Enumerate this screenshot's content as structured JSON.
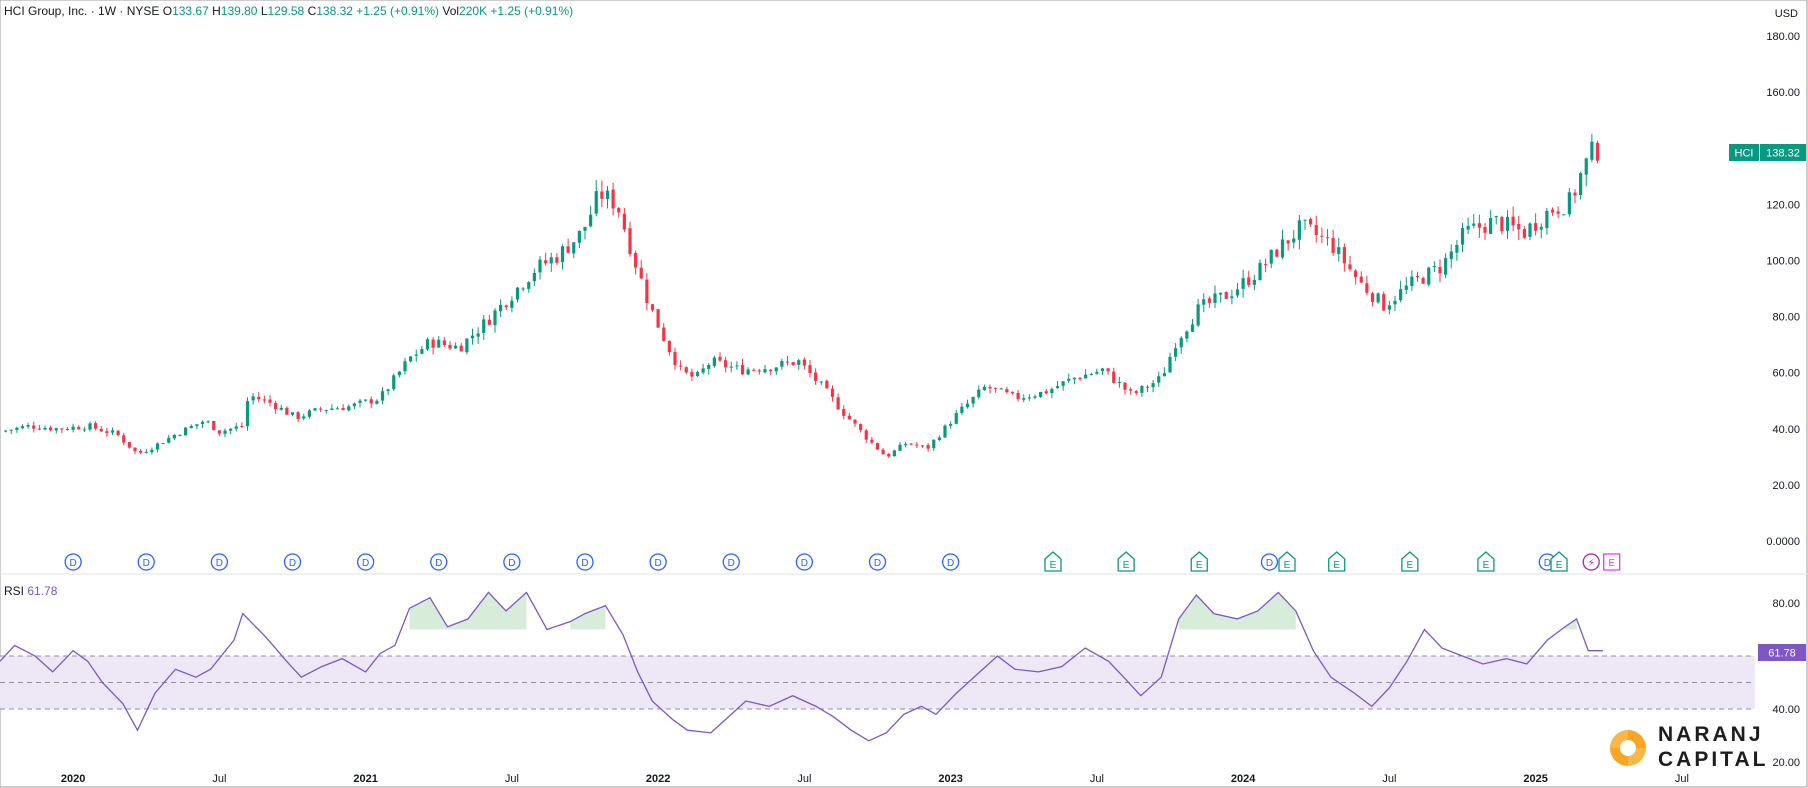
{
  "header": {
    "title": "HCI Group, Inc. · 1W · NYSE",
    "open_label": "O",
    "open": "133.67",
    "high_label": "H",
    "high": "139.80",
    "low_label": "L",
    "low": "129.58",
    "close_label": "C",
    "close": "138.32",
    "change": "+1.25 (+0.91%)",
    "vol_label": "Vol",
    "vol": "220K",
    "vol_change": "+1.25 (+0.91%)"
  },
  "currency": "USD",
  "price_tag": {
    "symbol": "HCI",
    "value": "138.32"
  },
  "rsi_legend": {
    "label": "RSI",
    "value": "61.78"
  },
  "rsi_tag": "61.78",
  "logo": {
    "line1": "NARANJ",
    "line2": "CAPITAL"
  },
  "colors": {
    "up": "#089981",
    "down": "#f23645",
    "rsi_line": "#7e57c2",
    "rsi_band": "#ede7f6",
    "dividend": "#2962ff",
    "earnings": "#089981",
    "split": "#e040fb",
    "grid": "#ffffff",
    "text": "#131722",
    "logo_orange": "#f5a623"
  },
  "chart_data": [
    {
      "type": "candlestick",
      "title": "HCI Group, Inc. · 1W · NYSE",
      "ylabel": "USD",
      "ylim": [
        0,
        180
      ],
      "y_ticks": [
        "180.00",
        "160.00",
        "140.00",
        "120.00",
        "100.00",
        "80.00",
        "60.00",
        "40.00",
        "20.00",
        "0.0000"
      ],
      "x_ticks": [
        "2020",
        "Jul",
        "2021",
        "Jul",
        "2022",
        "Jul",
        "2023",
        "Jul",
        "2024",
        "Jul",
        "2025",
        "Jul"
      ],
      "x_range": [
        2019.75,
        2025.75
      ],
      "series": [
        {
          "name": "HCI",
          "close_path": [
            [
              2019.75,
              39
            ],
            [
              2019.85,
              41
            ],
            [
              2019.95,
              40
            ],
            [
              2020.05,
              41
            ],
            [
              2020.15,
              38
            ],
            [
              2020.22,
              31
            ],
            [
              2020.28,
              34
            ],
            [
              2020.35,
              38
            ],
            [
              2020.45,
              43
            ],
            [
              2020.5,
              39
            ],
            [
              2020.58,
              41
            ],
            [
              2020.6,
              52
            ],
            [
              2020.68,
              49
            ],
            [
              2020.76,
              44
            ],
            [
              2020.85,
              47
            ],
            [
              2020.95,
              48
            ],
            [
              2021.05,
              51
            ],
            [
              2021.15,
              65
            ],
            [
              2021.22,
              71
            ],
            [
              2021.32,
              69
            ],
            [
              2021.42,
              79
            ],
            [
              2021.5,
              88
            ],
            [
              2021.58,
              97
            ],
            [
              2021.66,
              102
            ],
            [
              2021.74,
              110
            ],
            [
              2021.8,
              124
            ],
            [
              2021.86,
              120
            ],
            [
              2021.92,
              100
            ],
            [
              2021.97,
              84
            ],
            [
              2022.03,
              70
            ],
            [
              2022.08,
              60
            ],
            [
              2022.13,
              58
            ],
            [
              2022.18,
              64
            ],
            [
              2022.28,
              61
            ],
            [
              2022.38,
              62
            ],
            [
              2022.48,
              64
            ],
            [
              2022.56,
              55
            ],
            [
              2022.64,
              45
            ],
            [
              2022.72,
              36
            ],
            [
              2022.78,
              30
            ],
            [
              2022.85,
              35
            ],
            [
              2022.92,
              33
            ],
            [
              2023.02,
              45
            ],
            [
              2023.12,
              55
            ],
            [
              2023.22,
              51
            ],
            [
              2023.32,
              53
            ],
            [
              2023.42,
              58
            ],
            [
              2023.52,
              61
            ],
            [
              2023.62,
              52
            ],
            [
              2023.72,
              58
            ],
            [
              2023.77,
              71
            ],
            [
              2023.85,
              83
            ],
            [
              2023.95,
              88
            ],
            [
              2024.05,
              96
            ],
            [
              2024.12,
              104
            ],
            [
              2024.2,
              112
            ],
            [
              2024.3,
              106
            ],
            [
              2024.4,
              92
            ],
            [
              2024.48,
              84
            ],
            [
              2024.58,
              92
            ],
            [
              2024.68,
              98
            ],
            [
              2024.76,
              110
            ],
            [
              2024.86,
              114
            ],
            [
              2024.96,
              110
            ],
            [
              2025.05,
              118
            ],
            [
              2025.12,
              121
            ],
            [
              2025.16,
              132
            ],
            [
              2025.2,
              140
            ],
            [
              2025.23,
              138
            ]
          ]
        }
      ]
    },
    {
      "type": "line",
      "title": "RSI",
      "ylim": [
        20,
        90
      ],
      "y_ticks": [
        "80.00",
        "40.00",
        "20.00"
      ],
      "band": [
        40,
        60
      ],
      "x_range": [
        2019.75,
        2025.75
      ],
      "series": [
        {
          "name": "RSI",
          "points": [
            [
              2019.75,
              58
            ],
            [
              2019.8,
              64
            ],
            [
              2019.87,
              60
            ],
            [
              2019.93,
              54
            ],
            [
              2020.0,
              62
            ],
            [
              2020.05,
              58
            ],
            [
              2020.1,
              50
            ],
            [
              2020.17,
              42
            ],
            [
              2020.22,
              32
            ],
            [
              2020.28,
              46
            ],
            [
              2020.35,
              55
            ],
            [
              2020.42,
              52
            ],
            [
              2020.47,
              55
            ],
            [
              2020.55,
              66
            ],
            [
              2020.58,
              76
            ],
            [
              2020.66,
              67
            ],
            [
              2020.73,
              58
            ],
            [
              2020.78,
              52
            ],
            [
              2020.85,
              56
            ],
            [
              2020.92,
              59
            ],
            [
              2021.0,
              54
            ],
            [
              2021.05,
              61
            ],
            [
              2021.1,
              64
            ],
            [
              2021.15,
              78
            ],
            [
              2021.22,
              82
            ],
            [
              2021.28,
              71
            ],
            [
              2021.35,
              74
            ],
            [
              2021.42,
              84
            ],
            [
              2021.48,
              77
            ],
            [
              2021.55,
              84
            ],
            [
              2021.62,
              70
            ],
            [
              2021.7,
              73
            ],
            [
              2021.75,
              76
            ],
            [
              2021.82,
              79
            ],
            [
              2021.88,
              68
            ],
            [
              2021.93,
              54
            ],
            [
              2021.98,
              43
            ],
            [
              2022.05,
              36
            ],
            [
              2022.1,
              32
            ],
            [
              2022.18,
              31
            ],
            [
              2022.23,
              36
            ],
            [
              2022.3,
              43
            ],
            [
              2022.38,
              41
            ],
            [
              2022.46,
              45
            ],
            [
              2022.54,
              41
            ],
            [
              2022.6,
              37
            ],
            [
              2022.66,
              32
            ],
            [
              2022.72,
              28
            ],
            [
              2022.78,
              31
            ],
            [
              2022.84,
              38
            ],
            [
              2022.9,
              41
            ],
            [
              2022.95,
              38
            ],
            [
              2023.02,
              46
            ],
            [
              2023.1,
              54
            ],
            [
              2023.16,
              60
            ],
            [
              2023.22,
              55
            ],
            [
              2023.3,
              54
            ],
            [
              2023.38,
              56
            ],
            [
              2023.46,
              63
            ],
            [
              2023.54,
              58
            ],
            [
              2023.6,
              51
            ],
            [
              2023.65,
              45
            ],
            [
              2023.72,
              52
            ],
            [
              2023.78,
              74
            ],
            [
              2023.84,
              83
            ],
            [
              2023.9,
              76
            ],
            [
              2023.98,
              74
            ],
            [
              2024.05,
              77
            ],
            [
              2024.12,
              84
            ],
            [
              2024.18,
              77
            ],
            [
              2024.24,
              62
            ],
            [
              2024.3,
              52
            ],
            [
              2024.38,
              46
            ],
            [
              2024.44,
              41
            ],
            [
              2024.5,
              48
            ],
            [
              2024.56,
              58
            ],
            [
              2024.62,
              70
            ],
            [
              2024.68,
              63
            ],
            [
              2024.75,
              60
            ],
            [
              2024.82,
              57
            ],
            [
              2024.9,
              59
            ],
            [
              2024.97,
              57
            ],
            [
              2025.04,
              66
            ],
            [
              2025.1,
              71
            ],
            [
              2025.14,
              74
            ],
            [
              2025.18,
              62
            ],
            [
              2025.23,
              62
            ]
          ]
        }
      ]
    }
  ],
  "events": {
    "dividends": [
      {
        "x": 2020.0,
        "label": "D"
      },
      {
        "x": 2020.25,
        "label": "D"
      },
      {
        "x": 2020.5,
        "label": "D"
      },
      {
        "x": 2020.75,
        "label": "D"
      },
      {
        "x": 2021.0,
        "label": "D"
      },
      {
        "x": 2021.25,
        "label": "D"
      },
      {
        "x": 2021.5,
        "label": "D"
      },
      {
        "x": 2021.75,
        "label": "D"
      },
      {
        "x": 2022.0,
        "label": "D"
      },
      {
        "x": 2022.25,
        "label": "D"
      },
      {
        "x": 2022.5,
        "label": "D"
      },
      {
        "x": 2022.75,
        "label": "D"
      },
      {
        "x": 2023.0,
        "label": "D"
      },
      {
        "x": 2024.09,
        "label": "D"
      },
      {
        "x": 2025.04,
        "label": "D"
      }
    ],
    "earnings": [
      {
        "x": 2023.35,
        "label": "E"
      },
      {
        "x": 2023.6,
        "label": "E"
      },
      {
        "x": 2023.85,
        "label": "E"
      },
      {
        "x": 2024.15,
        "label": "E"
      },
      {
        "x": 2024.32,
        "label": "E"
      },
      {
        "x": 2024.57,
        "label": "E"
      },
      {
        "x": 2024.83,
        "label": "E"
      },
      {
        "x": 2025.08,
        "label": "E"
      }
    ],
    "splits": [
      {
        "x": 2025.19,
        "label": "⚡"
      }
    ],
    "future_earnings": [
      {
        "x": 2025.26,
        "label": "E"
      }
    ]
  }
}
